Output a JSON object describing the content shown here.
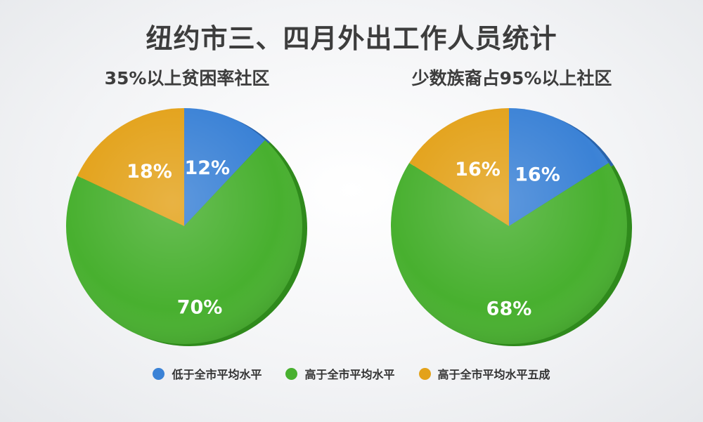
{
  "title": "纽约市三、四月外出工作人员统计",
  "colors": {
    "below": "#3b82d6",
    "above": "#48b02f",
    "above50": "#e3a21a"
  },
  "legend": [
    {
      "label": "低于全市平均水平",
      "color": "#3b82d6"
    },
    {
      "label": "高于全市平均水平",
      "color": "#48b02f"
    },
    {
      "label": "高于全市平均水平五成",
      "color": "#e3a21a"
    }
  ],
  "chart_data": [
    {
      "type": "pie",
      "title": "35%以上贫困率社区",
      "slices": [
        {
          "name": "低于全市平均水平",
          "value": 12,
          "label": "12%"
        },
        {
          "name": "高于全市平均水平",
          "value": 70,
          "label": "70%"
        },
        {
          "name": "高于全市平均水平五成",
          "value": 18,
          "label": "18%"
        }
      ]
    },
    {
      "type": "pie",
      "title": "少数族裔占95%以上社区",
      "slices": [
        {
          "name": "低于全市平均水平",
          "value": 16,
          "label": "16%"
        },
        {
          "name": "高于全市平均水平",
          "value": 68,
          "label": "68%"
        },
        {
          "name": "高于全市平均水平五成",
          "value": 16,
          "label": "16%"
        }
      ]
    }
  ]
}
